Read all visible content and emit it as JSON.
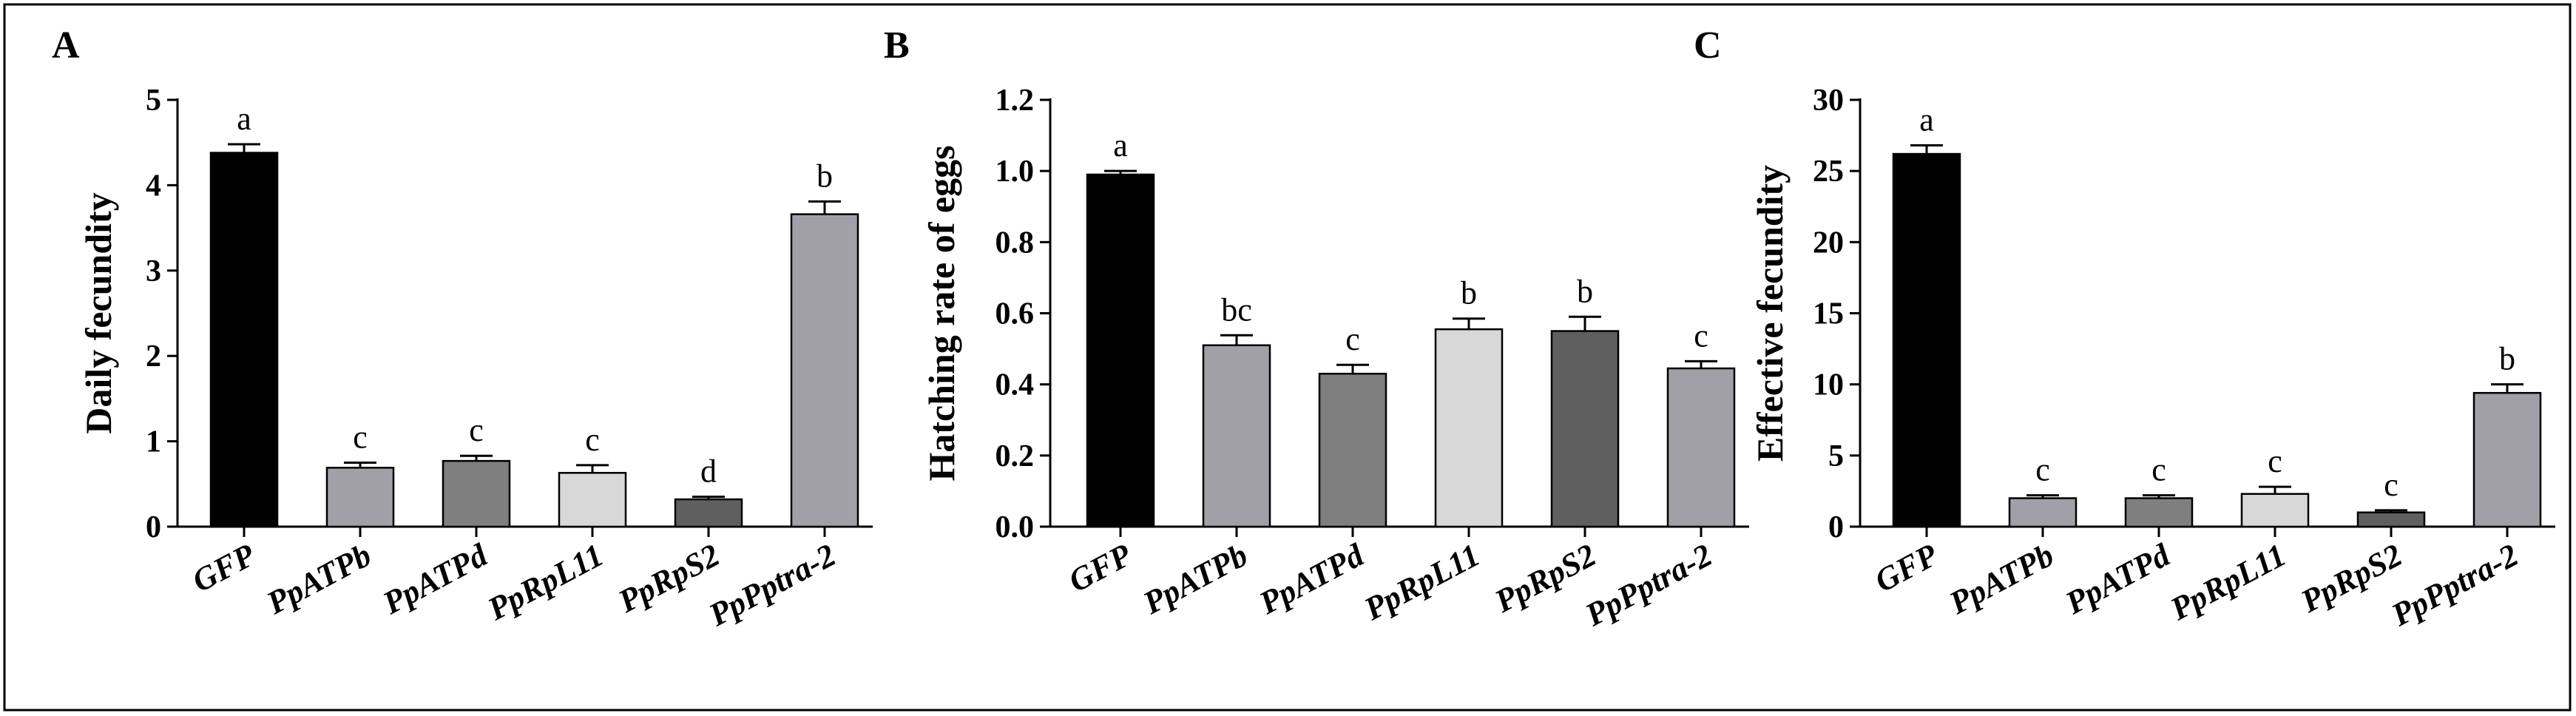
{
  "chart_data": [
    {
      "type": "bar",
      "panel": "A",
      "ylabel": "Daily fecundity",
      "categories": [
        "GFP",
        "PpATPb",
        "PpATPd",
        "PpRpL11",
        "PpRpS2",
        "PpPptra-2"
      ],
      "values": [
        4.38,
        0.69,
        0.77,
        0.63,
        0.32,
        3.66
      ],
      "errors": [
        0.1,
        0.06,
        0.06,
        0.09,
        0.03,
        0.15
      ],
      "significance": [
        "a",
        "c",
        "c",
        "c",
        "d",
        "b"
      ],
      "ylim": [
        0,
        5
      ],
      "yticks": [
        "0",
        "1",
        "2",
        "3",
        "4",
        "5"
      ],
      "ytick_values": [
        0,
        1,
        2,
        3,
        4,
        5
      ]
    },
    {
      "type": "bar",
      "panel": "B",
      "ylabel": "Hatching rate of eggs",
      "categories": [
        "GFP",
        "PpATPb",
        "PpATPd",
        "PpRpL11",
        "PpRpS2",
        "PpPptra-2"
      ],
      "values": [
        0.99,
        0.51,
        0.43,
        0.555,
        0.55,
        0.445
      ],
      "errors": [
        0.01,
        0.028,
        0.025,
        0.03,
        0.04,
        0.02
      ],
      "significance": [
        "a",
        "bc",
        "c",
        "b",
        "b",
        "c"
      ],
      "ylim": [
        0,
        1.2
      ],
      "yticks": [
        "0.0",
        "0.2",
        "0.4",
        "0.6",
        "0.8",
        "1.0",
        "1.2"
      ],
      "ytick_values": [
        0,
        0.2,
        0.4,
        0.6,
        0.8,
        1.0,
        1.2
      ]
    },
    {
      "type": "bar",
      "panel": "C",
      "ylabel": "Effective fecundity",
      "categories": [
        "GFP",
        "PpATPb",
        "PpATPd",
        "PpRpL11",
        "PpRpS2",
        "PpPptra-2"
      ],
      "values": [
        26.2,
        2.0,
        2.0,
        2.3,
        1.0,
        9.4
      ],
      "errors": [
        0.6,
        0.2,
        0.2,
        0.5,
        0.15,
        0.6
      ],
      "significance": [
        "a",
        "c",
        "c",
        "c",
        "c",
        "b"
      ],
      "ylim": [
        0,
        30
      ],
      "yticks": [
        "0",
        "5",
        "10",
        "15",
        "20",
        "25",
        "30"
      ],
      "ytick_values": [
        0,
        5,
        10,
        15,
        20,
        25,
        30
      ]
    }
  ],
  "bar_colors": [
    "#000000",
    "#a19fa8",
    "#7f7f7f",
    "#d8d8d8",
    "#5f5f5f",
    "#a19fa8"
  ]
}
